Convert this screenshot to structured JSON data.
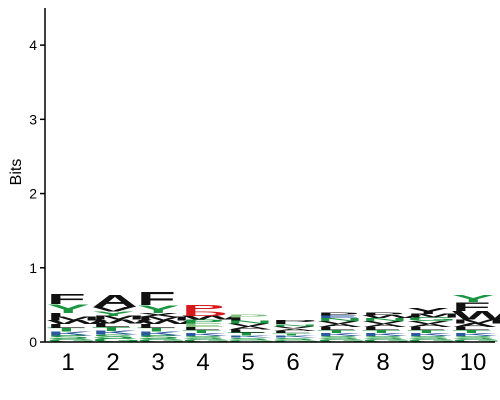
{
  "chart_data": {
    "type": "sequence-logo",
    "ylabel": "Bits",
    "ylim": [
      0,
      4.5
    ],
    "yticks": [
      0,
      1,
      2,
      3,
      4
    ],
    "positions": [
      "1",
      "2",
      "3",
      "4",
      "5",
      "6",
      "7",
      "8",
      "9",
      "10"
    ],
    "colors": {
      "hydrophobic": "#111111",
      "polar": "#1a9641",
      "acidic": "#d7191c",
      "basic": "#2c5aa0",
      "neutral": "#7fbf7b"
    },
    "stacks": [
      [
        {
          "letter": "G",
          "bits": 0.04,
          "color": "#1a9641"
        },
        {
          "letter": "S",
          "bits": 0.05,
          "color": "#1a9641"
        },
        {
          "letter": "K",
          "bits": 0.05,
          "color": "#2c5aa0"
        },
        {
          "letter": "T",
          "bits": 0.05,
          "color": "#1a9641"
        },
        {
          "letter": "L",
          "bits": 0.05,
          "color": "#111111"
        },
        {
          "letter": "W",
          "bits": 0.05,
          "color": "#111111"
        },
        {
          "letter": "M",
          "bits": 0.05,
          "color": "#111111"
        },
        {
          "letter": "I",
          "bits": 0.05,
          "color": "#111111"
        },
        {
          "letter": "Y",
          "bits": 0.12,
          "color": "#1a9641"
        },
        {
          "letter": "F",
          "bits": 0.14,
          "color": "#111111"
        }
      ],
      [
        {
          "letter": "G",
          "bits": 0.05,
          "color": "#1a9641"
        },
        {
          "letter": "S",
          "bits": 0.05,
          "color": "#1a9641"
        },
        {
          "letter": "K",
          "bits": 0.05,
          "color": "#2c5aa0"
        },
        {
          "letter": "T",
          "bits": 0.05,
          "color": "#1a9641"
        },
        {
          "letter": "L",
          "bits": 0.05,
          "color": "#111111"
        },
        {
          "letter": "W",
          "bits": 0.05,
          "color": "#111111"
        },
        {
          "letter": "M",
          "bits": 0.05,
          "color": "#111111"
        },
        {
          "letter": "Y",
          "bits": 0.06,
          "color": "#1a9641"
        },
        {
          "letter": "V",
          "bits": 0.06,
          "color": "#111111"
        },
        {
          "letter": "A",
          "bits": 0.17,
          "color": "#111111"
        }
      ],
      [
        {
          "letter": "G",
          "bits": 0.04,
          "color": "#1a9641"
        },
        {
          "letter": "S",
          "bits": 0.05,
          "color": "#1a9641"
        },
        {
          "letter": "K",
          "bits": 0.05,
          "color": "#2c5aa0"
        },
        {
          "letter": "T",
          "bits": 0.05,
          "color": "#1a9641"
        },
        {
          "letter": "L",
          "bits": 0.05,
          "color": "#111111"
        },
        {
          "letter": "W",
          "bits": 0.05,
          "color": "#111111"
        },
        {
          "letter": "M",
          "bits": 0.05,
          "color": "#111111"
        },
        {
          "letter": "X",
          "bits": 0.05,
          "color": "#111111"
        },
        {
          "letter": "Y",
          "bits": 0.11,
          "color": "#1a9641"
        },
        {
          "letter": "F",
          "bits": 0.18,
          "color": "#111111"
        }
      ],
      [
        {
          "letter": "G",
          "bits": 0.04,
          "color": "#1a9641"
        },
        {
          "letter": "S",
          "bits": 0.04,
          "color": "#1a9641"
        },
        {
          "letter": "K",
          "bits": 0.04,
          "color": "#2c5aa0"
        },
        {
          "letter": "T",
          "bits": 0.04,
          "color": "#1a9641"
        },
        {
          "letter": "L",
          "bits": 0.04,
          "color": "#111111"
        },
        {
          "letter": "E",
          "bits": 0.05,
          "color": "#7fbf7b"
        },
        {
          "letter": "P",
          "bits": 0.05,
          "color": "#1a9641"
        },
        {
          "letter": "W",
          "bits": 0.05,
          "color": "#111111"
        },
        {
          "letter": "D",
          "bits": 0.06,
          "color": "#d7191c"
        },
        {
          "letter": "P",
          "bits": 0.09,
          "color": "#d7191c"
        }
      ],
      [
        {
          "letter": "G",
          "bits": 0.03,
          "color": "#1a9641"
        },
        {
          "letter": "S",
          "bits": 0.03,
          "color": "#1a9641"
        },
        {
          "letter": "K",
          "bits": 0.03,
          "color": "#2c5aa0"
        },
        {
          "letter": "T",
          "bits": 0.04,
          "color": "#1a9641"
        },
        {
          "letter": "L",
          "bits": 0.04,
          "color": "#111111"
        },
        {
          "letter": "A",
          "bits": 0.04,
          "color": "#111111"
        },
        {
          "letter": "V",
          "bits": 0.04,
          "color": "#111111"
        },
        {
          "letter": "N",
          "bits": 0.04,
          "color": "#1a9641"
        },
        {
          "letter": "I",
          "bits": 0.04,
          "color": "#111111"
        },
        {
          "letter": "P",
          "bits": 0.04,
          "color": "#7fbf7b"
        }
      ],
      [
        {
          "letter": "G",
          "bits": 0.03,
          "color": "#1a9641"
        },
        {
          "letter": "S",
          "bits": 0.03,
          "color": "#1a9641"
        },
        {
          "letter": "K",
          "bits": 0.03,
          "color": "#2c5aa0"
        },
        {
          "letter": "T",
          "bits": 0.03,
          "color": "#1a9641"
        },
        {
          "letter": "L",
          "bits": 0.03,
          "color": "#111111"
        },
        {
          "letter": "A",
          "bits": 0.03,
          "color": "#111111"
        },
        {
          "letter": "V",
          "bits": 0.03,
          "color": "#111111"
        },
        {
          "letter": "N",
          "bits": 0.03,
          "color": "#1a9641"
        },
        {
          "letter": "I",
          "bits": 0.03,
          "color": "#111111"
        },
        {
          "letter": "R",
          "bits": 0.03,
          "color": "#111111"
        }
      ],
      [
        {
          "letter": "G",
          "bits": 0.04,
          "color": "#1a9641"
        },
        {
          "letter": "S",
          "bits": 0.04,
          "color": "#1a9641"
        },
        {
          "letter": "K",
          "bits": 0.04,
          "color": "#2c5aa0"
        },
        {
          "letter": "T",
          "bits": 0.04,
          "color": "#1a9641"
        },
        {
          "letter": "L",
          "bits": 0.04,
          "color": "#111111"
        },
        {
          "letter": "A",
          "bits": 0.04,
          "color": "#111111"
        },
        {
          "letter": "V",
          "bits": 0.04,
          "color": "#111111"
        },
        {
          "letter": "N",
          "bits": 0.04,
          "color": "#1a9641"
        },
        {
          "letter": "E",
          "bits": 0.04,
          "color": "#2c5aa0"
        },
        {
          "letter": "P",
          "bits": 0.04,
          "color": "#111111"
        }
      ],
      [
        {
          "letter": "G",
          "bits": 0.04,
          "color": "#1a9641"
        },
        {
          "letter": "S",
          "bits": 0.04,
          "color": "#1a9641"
        },
        {
          "letter": "K",
          "bits": 0.04,
          "color": "#2c5aa0"
        },
        {
          "letter": "T",
          "bits": 0.04,
          "color": "#1a9641"
        },
        {
          "letter": "L",
          "bits": 0.04,
          "color": "#111111"
        },
        {
          "letter": "A",
          "bits": 0.04,
          "color": "#111111"
        },
        {
          "letter": "V",
          "bits": 0.04,
          "color": "#111111"
        },
        {
          "letter": "N",
          "bits": 0.04,
          "color": "#1a9641"
        },
        {
          "letter": "W",
          "bits": 0.04,
          "color": "#111111"
        },
        {
          "letter": "P",
          "bits": 0.04,
          "color": "#111111"
        }
      ],
      [
        {
          "letter": "G",
          "bits": 0.04,
          "color": "#1a9641"
        },
        {
          "letter": "S",
          "bits": 0.04,
          "color": "#1a9641"
        },
        {
          "letter": "K",
          "bits": 0.04,
          "color": "#2c5aa0"
        },
        {
          "letter": "T",
          "bits": 0.04,
          "color": "#1a9641"
        },
        {
          "letter": "L",
          "bits": 0.04,
          "color": "#111111"
        },
        {
          "letter": "A",
          "bits": 0.04,
          "color": "#111111"
        },
        {
          "letter": "V",
          "bits": 0.04,
          "color": "#111111"
        },
        {
          "letter": "G",
          "bits": 0.05,
          "color": "#1a9641"
        },
        {
          "letter": "M",
          "bits": 0.05,
          "color": "#111111"
        },
        {
          "letter": "Y",
          "bits": 0.08,
          "color": "#111111"
        }
      ],
      [
        {
          "letter": "G",
          "bits": 0.04,
          "color": "#1a9641"
        },
        {
          "letter": "S",
          "bits": 0.04,
          "color": "#1a9641"
        },
        {
          "letter": "K",
          "bits": 0.04,
          "color": "#2c5aa0"
        },
        {
          "letter": "T",
          "bits": 0.04,
          "color": "#1a9641"
        },
        {
          "letter": "L",
          "bits": 0.04,
          "color": "#111111"
        },
        {
          "letter": "A",
          "bits": 0.05,
          "color": "#111111"
        },
        {
          "letter": "M",
          "bits": 0.05,
          "color": "#111111"
        },
        {
          "letter": "W",
          "bits": 0.12,
          "color": "#111111"
        },
        {
          "letter": "F",
          "bits": 0.12,
          "color": "#111111"
        },
        {
          "letter": "Y",
          "bits": 0.1,
          "color": "#1a9641"
        }
      ]
    ]
  }
}
